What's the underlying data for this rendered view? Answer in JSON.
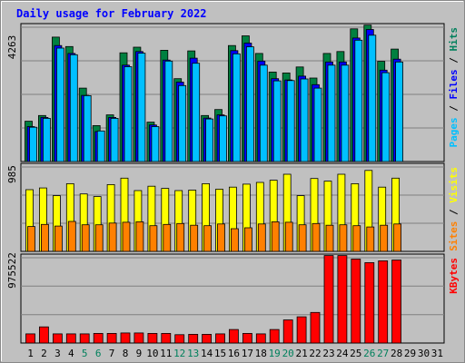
{
  "chart_data": {
    "type": "bar",
    "title": "Daily usage for February 2022",
    "categories": [
      "1",
      "2",
      "3",
      "4",
      "5",
      "6",
      "7",
      "8",
      "9",
      "10",
      "11",
      "12",
      "13",
      "14",
      "15",
      "16",
      "17",
      "18",
      "19",
      "20",
      "21",
      "22",
      "23",
      "24",
      "25",
      "26",
      "27",
      "28",
      "29",
      "30",
      "31"
    ],
    "weekend_days": [
      5,
      6,
      12,
      13,
      19,
      20,
      26,
      27
    ],
    "panels": [
      {
        "id": "top",
        "max_label": "4263",
        "ymax": 4263,
        "side_labels": [
          {
            "text": "Hits",
            "color": "#00805c"
          },
          {
            "text": "Files",
            "color": "#0000ff"
          },
          {
            "text": "Pages",
            "color": "#00c0ff"
          }
        ],
        "series": [
          {
            "name": "Hits",
            "color": "#008040",
            "values": [
              1280,
              1460,
              3950,
              3650,
              2330,
              1140,
              1480,
              3450,
              3630,
              1250,
              3530,
              2630,
              3510,
              1460,
              1650,
              3680,
              3990,
              3430,
              2840,
              2810,
              3000,
              2650,
              3430,
              3490,
              4210,
              4330,
              3180,
              3570
            ]
          },
          {
            "name": "Files",
            "color": "#0000ff",
            "values": [
              1110,
              1400,
              3680,
              3430,
              2100,
              950,
              1400,
              3060,
              3490,
              1160,
              3220,
              2520,
              3280,
              1380,
              1480,
              3520,
              3760,
              3190,
              2630,
              2590,
              2710,
              2440,
              3160,
              3160,
              3920,
              4190,
              2900,
              3250
            ]
          },
          {
            "name": "Pages",
            "color": "#00c0ff",
            "values": [
              1090,
              1370,
              3600,
              3390,
              2090,
              970,
              1370,
              3010,
              3440,
              1110,
              3190,
              2410,
              3120,
              1350,
              1450,
              3420,
              3640,
              3060,
              2560,
              2570,
              2620,
              2330,
              3060,
              3060,
              3850,
              4010,
              2820,
              3160
            ]
          }
        ]
      },
      {
        "id": "middle",
        "max_label": "985",
        "ymax": 985,
        "side_labels": [
          {
            "text": "Visits",
            "color": "#ffff00"
          },
          {
            "text": "Sites",
            "color": "#ff8000"
          }
        ],
        "series": [
          {
            "name": "Visits",
            "color": "#ffff00",
            "values": [
              720,
              740,
              650,
              790,
              670,
              640,
              780,
              855,
              710,
              760,
              735,
              710,
              715,
              790,
              725,
              750,
              785,
              805,
              830,
              900,
              650,
              850,
              820,
              900,
              790,
              945,
              750,
              855
            ]
          },
          {
            "name": "Sites",
            "color": "#ff8000",
            "values": [
              290,
              315,
              295,
              350,
              310,
              310,
              330,
              340,
              345,
              300,
              315,
              325,
              305,
              300,
              320,
              265,
              275,
              320,
              345,
              340,
              310,
              325,
              305,
              310,
              300,
              285,
              305,
              320
            ]
          }
        ]
      },
      {
        "id": "bottom",
        "max_label": "975522",
        "ymax": 975522,
        "side_labels": [
          {
            "text": "KBytes",
            "color": "#ff0000"
          }
        ],
        "series": [
          {
            "name": "KBytes",
            "color": "#ff0000",
            "values": [
              105000,
              185000,
              105000,
              105000,
              105000,
              110000,
              110000,
              115000,
              115000,
              110000,
              110000,
              95000,
              100000,
              100000,
              105000,
              155000,
              110000,
              105000,
              155000,
              265000,
              300000,
              350000,
              1000000,
              1000000,
              960000,
              920000,
              940000,
              950000
            ]
          }
        ]
      }
    ]
  }
}
